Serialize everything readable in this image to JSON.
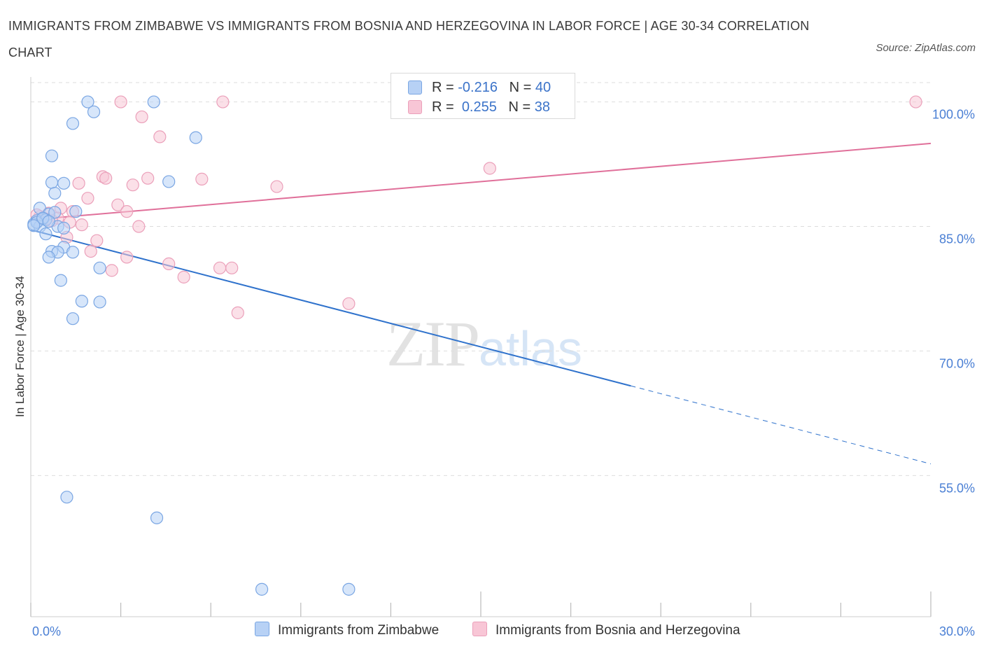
{
  "title": "IMMIGRANTS FROM ZIMBABWE VS IMMIGRANTS FROM BOSNIA AND HERZEGOVINA IN LABOR FORCE | AGE 30-34 CORRELATION CHART",
  "source": "Source: ZipAtlas.com",
  "watermark": {
    "zip": "ZIP",
    "atlas": "atlas"
  },
  "legend": {
    "r_label": "R =",
    "n_label": "N =",
    "series": [
      {
        "r": "-0.216",
        "n": "40"
      },
      {
        "r": "0.255",
        "n": "38"
      }
    ]
  },
  "colors": {
    "blue_fill": "#b7d1f5",
    "blue_stroke": "#7aa6e3",
    "blue_line": "#2f72cc",
    "pink_fill": "#f8c6d6",
    "pink_stroke": "#eba0ba",
    "pink_line": "#e0709a",
    "grid": "#dddddd",
    "axis_label": "#4a7fd4"
  },
  "chart_data": {
    "type": "scatter",
    "title": "IMMIGRANTS FROM ZIMBABWE VS IMMIGRANTS FROM BOSNIA AND HERZEGOVINA IN LABOR FORCE | AGE 30-34 CORRELATION CHART",
    "xlabel": "",
    "ylabel": "In Labor Force | Age 30-34",
    "xlim": [
      0,
      30
    ],
    "ylim": [
      38,
      103
    ],
    "x_tick_labels": [
      {
        "value": 0,
        "label": "0.0%"
      },
      {
        "value": 30,
        "label": "30.0%"
      }
    ],
    "y_tick_labels": [
      {
        "value": 100,
        "label": "100.0%"
      },
      {
        "value": 85,
        "label": "85.0%"
      },
      {
        "value": 70,
        "label": "70.0%"
      },
      {
        "value": 55,
        "label": "55.0%"
      }
    ],
    "series": [
      {
        "name": "Immigrants from Zimbabwe",
        "r": -0.216,
        "n": 40,
        "points": [
          [
            1.9,
            100.0
          ],
          [
            4.1,
            100.0
          ],
          [
            2.1,
            98.8
          ],
          [
            1.4,
            97.4
          ],
          [
            5.5,
            95.7
          ],
          [
            0.7,
            93.5
          ],
          [
            0.7,
            90.3
          ],
          [
            1.1,
            90.2
          ],
          [
            4.6,
            90.4
          ],
          [
            0.8,
            89.0
          ],
          [
            0.3,
            87.2
          ],
          [
            0.6,
            86.5
          ],
          [
            1.5,
            86.8
          ],
          [
            0.4,
            85.9
          ],
          [
            0.2,
            85.7
          ],
          [
            0.5,
            85.8
          ],
          [
            0.1,
            85.3
          ],
          [
            0.3,
            85.0
          ],
          [
            0.9,
            85.0
          ],
          [
            1.1,
            84.8
          ],
          [
            0.5,
            84.1
          ],
          [
            1.1,
            82.5
          ],
          [
            0.7,
            82.0
          ],
          [
            0.9,
            81.9
          ],
          [
            1.4,
            81.9
          ],
          [
            0.6,
            81.3
          ],
          [
            2.3,
            80.0
          ],
          [
            1.0,
            78.5
          ],
          [
            1.7,
            76.0
          ],
          [
            2.3,
            75.9
          ],
          [
            1.4,
            73.9
          ],
          [
            1.2,
            52.4
          ],
          [
            4.2,
            49.9
          ],
          [
            7.7,
            41.3
          ],
          [
            10.6,
            41.3
          ],
          [
            0.2,
            85.5
          ],
          [
            0.4,
            86.0
          ],
          [
            0.8,
            86.7
          ],
          [
            0.1,
            85.1
          ],
          [
            0.6,
            85.6
          ]
        ],
        "trend": {
          "x0": 0,
          "y0": 84.6,
          "x1": 20.0,
          "y1": 65.8,
          "dash_to_x": 30,
          "dash_to_y": 56.4
        }
      },
      {
        "name": "Immigrants from Bosnia and Herzegovina",
        "r": 0.255,
        "n": 38,
        "points": [
          [
            3.0,
            100.0
          ],
          [
            6.4,
            100.0
          ],
          [
            29.5,
            100.0
          ],
          [
            3.7,
            98.2
          ],
          [
            4.3,
            95.8
          ],
          [
            15.3,
            92.0
          ],
          [
            2.4,
            91.0
          ],
          [
            2.5,
            90.8
          ],
          [
            3.9,
            90.8
          ],
          [
            5.7,
            90.7
          ],
          [
            1.6,
            90.2
          ],
          [
            3.4,
            90.0
          ],
          [
            8.2,
            89.8
          ],
          [
            1.9,
            88.4
          ],
          [
            2.9,
            87.6
          ],
          [
            1.0,
            87.2
          ],
          [
            1.4,
            86.8
          ],
          [
            3.2,
            86.8
          ],
          [
            0.6,
            86.6
          ],
          [
            0.3,
            86.2
          ],
          [
            0.9,
            86.0
          ],
          [
            0.5,
            85.9
          ],
          [
            0.7,
            85.7
          ],
          [
            1.3,
            85.5
          ],
          [
            1.7,
            85.2
          ],
          [
            3.6,
            85.0
          ],
          [
            1.2,
            83.7
          ],
          [
            2.2,
            83.3
          ],
          [
            2.0,
            82.0
          ],
          [
            3.2,
            81.3
          ],
          [
            4.6,
            80.5
          ],
          [
            2.7,
            79.7
          ],
          [
            6.3,
            80.0
          ],
          [
            6.7,
            80.0
          ],
          [
            5.1,
            78.9
          ],
          [
            10.6,
            75.7
          ],
          [
            6.9,
            74.6
          ],
          [
            0.2,
            86.4
          ]
        ],
        "trend": {
          "x0": 0,
          "y0": 85.8,
          "x1": 30,
          "y1": 95.0
        }
      }
    ],
    "legend_position": "top-center",
    "grid": true
  }
}
